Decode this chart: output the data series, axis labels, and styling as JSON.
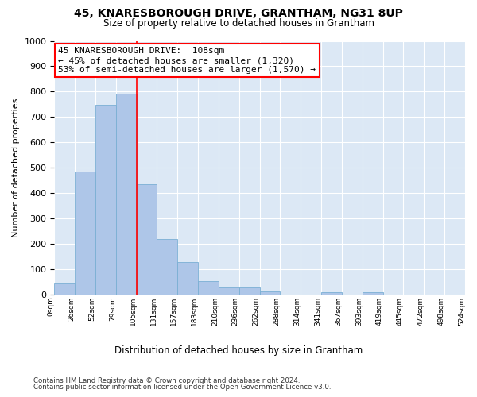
{
  "title": "45, KNARESBOROUGH DRIVE, GRANTHAM, NG31 8UP",
  "subtitle": "Size of property relative to detached houses in Grantham",
  "xlabel": "Distribution of detached houses by size in Grantham",
  "ylabel": "Number of detached properties",
  "bar_color": "#aec6e8",
  "bar_edge_color": "#7aafd4",
  "background_color": "#dce8f5",
  "grid_color": "#ffffff",
  "bin_labels": [
    "0sqm",
    "26sqm",
    "52sqm",
    "79sqm",
    "105sqm",
    "131sqm",
    "157sqm",
    "183sqm",
    "210sqm",
    "236sqm",
    "262sqm",
    "288sqm",
    "314sqm",
    "341sqm",
    "367sqm",
    "393sqm",
    "419sqm",
    "445sqm",
    "472sqm",
    "498sqm",
    "524sqm"
  ],
  "bar_heights": [
    42,
    485,
    748,
    793,
    435,
    218,
    127,
    53,
    28,
    28,
    12,
    0,
    0,
    8,
    0,
    8,
    0,
    0,
    0,
    0
  ],
  "ylim": [
    0,
    1000
  ],
  "yticks": [
    0,
    100,
    200,
    300,
    400,
    500,
    600,
    700,
    800,
    900,
    1000
  ],
  "annotation_text": "45 KNARESBOROUGH DRIVE:  108sqm\n← 45% of detached houses are smaller (1,320)\n53% of semi-detached houses are larger (1,570) →",
  "footnote1": "Contains HM Land Registry data © Crown copyright and database right 2024.",
  "footnote2": "Contains public sector information licensed under the Open Government Licence v3.0."
}
